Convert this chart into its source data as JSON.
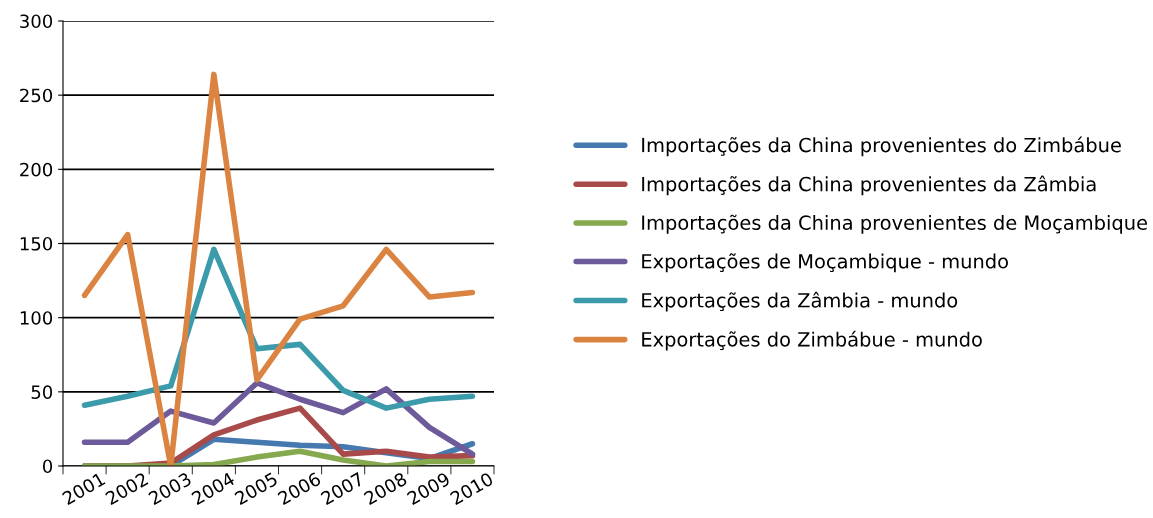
{
  "chart_data": {
    "type": "line",
    "categories": [
      "2001",
      "2002",
      "2003",
      "2004",
      "2005",
      "2006",
      "2007",
      "2008",
      "2009",
      "2010"
    ],
    "ylim": [
      0,
      300
    ],
    "yticks": [
      0,
      50,
      100,
      150,
      200,
      250,
      300
    ],
    "grid": "y",
    "legend": "right",
    "marker": "none",
    "line_style": "solid",
    "series": [
      {
        "name": "Importações da China provenientes do Zimbábue",
        "color": "#4579b0",
        "values": [
          0,
          0,
          0,
          18,
          16,
          14,
          13,
          9,
          5,
          15
        ]
      },
      {
        "name": "Importações da China provenientes da Zâmbia",
        "color": "#a84a4a",
        "values": [
          0,
          0,
          2,
          21,
          31,
          39,
          8,
          10,
          6,
          7
        ]
      },
      {
        "name": "Importações da China provenientes de Moçambique",
        "color": "#86a94f",
        "values": [
          0,
          0,
          0,
          1,
          6,
          10,
          4,
          0,
          3,
          3
        ]
      },
      {
        "name": "Exportações de Moçambique - mundo",
        "color": "#6d5a9a",
        "values": [
          16,
          16,
          37,
          29,
          56,
          45,
          36,
          52,
          26,
          8
        ]
      },
      {
        "name": "Exportações da Zâmbia - mundo",
        "color": "#3c9bab",
        "values": [
          41,
          47,
          54,
          146,
          79,
          82,
          51,
          39,
          45,
          47
        ]
      },
      {
        "name": "Exportações do Zimbábue - mundo",
        "color": "#db8441",
        "values": [
          115,
          156,
          0,
          264,
          58,
          99,
          108,
          146,
          114,
          117
        ]
      }
    ]
  }
}
